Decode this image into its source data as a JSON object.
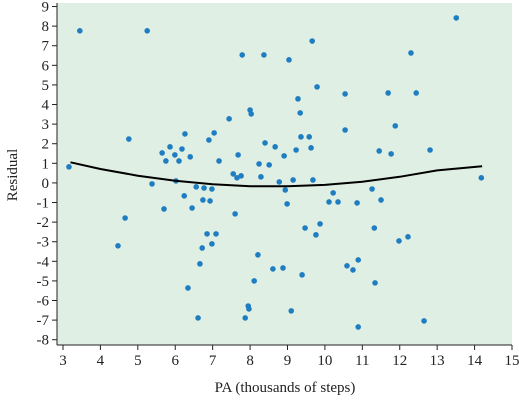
{
  "chart_data": {
    "type": "scatter",
    "x_label": "PA (thousands of steps)",
    "y_label": "Residual",
    "xlim": [
      2.84,
      15.0
    ],
    "ylim": [
      -8.27,
      9.18
    ],
    "xticks": [
      3,
      4,
      5,
      6,
      7,
      8,
      9,
      10,
      11,
      12,
      13,
      14,
      15
    ],
    "yticks": [
      -8,
      -7,
      -6,
      -5,
      -4,
      -3,
      -2,
      -1,
      0,
      1,
      2,
      3,
      4,
      5,
      6,
      7,
      8,
      9
    ],
    "background": "#e0efe3",
    "series": [
      {
        "type": "scatter",
        "color": "#1f7ec1",
        "x": [
          3.16,
          3.45,
          4.47,
          4.66,
          4.76,
          5.25,
          5.38,
          5.65,
          5.7,
          5.75,
          5.86,
          5.99,
          6.02,
          6.1,
          6.18,
          6.24,
          6.26,
          6.34,
          6.4,
          6.45,
          6.56,
          6.61,
          6.66,
          6.72,
          6.74,
          6.77,
          6.85,
          6.9,
          6.93,
          6.98,
          6.98,
          7.04,
          7.09,
          7.17,
          7.44,
          7.55,
          7.6,
          7.65,
          7.68,
          7.76,
          7.79,
          7.87,
          7.95,
          7.97,
          8.0,
          8.03,
          8.11,
          8.21,
          8.24,
          8.29,
          8.37,
          8.4,
          8.51,
          8.61,
          8.67,
          8.78,
          8.88,
          8.91,
          8.94,
          8.99,
          9.04,
          9.1,
          9.15,
          9.23,
          9.28,
          9.34,
          9.36,
          9.39,
          9.47,
          9.58,
          9.63,
          9.66,
          9.68,
          9.76,
          9.79,
          9.87,
          10.11,
          10.22,
          10.35,
          10.54,
          10.54,
          10.59,
          10.75,
          10.86,
          10.89,
          10.89,
          11.26,
          11.32,
          11.34,
          11.45,
          11.5,
          11.69,
          11.77,
          11.88,
          11.98,
          12.22,
          12.3,
          12.44,
          12.65,
          12.81,
          13.51,
          14.18
        ],
        "values": [
          0.82,
          7.76,
          -3.21,
          -1.79,
          2.24,
          7.76,
          -0.05,
          1.53,
          -1.33,
          1.12,
          1.84,
          1.43,
          0.1,
          1.12,
          1.73,
          -0.66,
          2.5,
          -5.36,
          1.33,
          -1.28,
          -0.2,
          -6.89,
          -4.13,
          -3.32,
          -0.87,
          -0.26,
          -2.6,
          2.19,
          -0.92,
          -3.11,
          -0.31,
          2.55,
          -2.6,
          1.12,
          3.27,
          0.46,
          -1.58,
          0.26,
          1.43,
          0.36,
          6.53,
          -6.89,
          -6.28,
          -6.43,
          3.72,
          3.52,
          -5.0,
          -3.67,
          0.97,
          0.31,
          6.53,
          2.04,
          0.92,
          -4.39,
          1.84,
          0.05,
          -4.34,
          1.38,
          -0.36,
          -1.07,
          6.28,
          -6.53,
          0.15,
          1.68,
          4.29,
          3.57,
          2.35,
          -4.69,
          -2.3,
          2.35,
          1.79,
          7.24,
          0.15,
          -2.65,
          4.9,
          -2.09,
          -0.97,
          -0.51,
          -0.97,
          4.54,
          2.7,
          -4.23,
          -4.44,
          -1.02,
          -3.93,
          -7.35,
          -0.31,
          -2.3,
          -5.1,
          1.63,
          -0.87,
          4.59,
          1.48,
          2.91,
          -2.96,
          -2.75,
          6.63,
          4.59,
          -7.04,
          1.68,
          8.42,
          0.26
        ]
      },
      {
        "type": "line",
        "color": "#000000",
        "x": [
          3.2,
          4,
          5,
          6,
          7,
          8,
          9,
          10,
          11,
          12,
          13,
          14.2
        ],
        "values": [
          1.05,
          0.71,
          0.37,
          0.11,
          -0.07,
          -0.17,
          -0.17,
          -0.1,
          0.06,
          0.31,
          0.64,
          0.85
        ]
      }
    ]
  }
}
